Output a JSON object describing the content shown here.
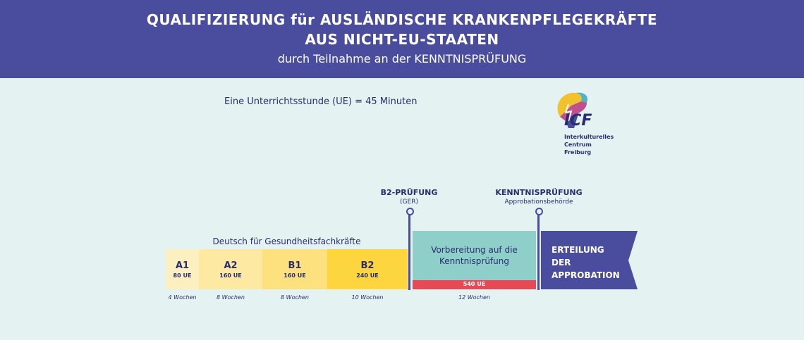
{
  "header": {
    "title_line1": "QUALIFIZIERUNG für AUSLÄNDISCHE KRANKENPFLEGEKRÄFTE",
    "title_line2": "AUS NICHT-EU-STAATEN",
    "subtitle": "durch Teilnahme an der KENNTNISPRÜFUNG"
  },
  "note": "Eine Unterrichtsstunde (UE) = 45 Minuten",
  "logo": {
    "mark": "ICF",
    "line1": "Interkulturelles",
    "line2": "Centrum",
    "line3": "Freiburg"
  },
  "milestones": {
    "b2_title": "B2-PRÜFUNG",
    "b2_sub": "(GER)",
    "kp_title": "KENNTNISPRÜFUNG",
    "kp_sub": "Approbationsbehörde"
  },
  "german_course": {
    "title": "Deutsch für Gesundheitsfachkräfte",
    "levels": [
      {
        "level": "A1",
        "ue": "80 UE",
        "weeks": "4 Wochen",
        "color": "#fdf0c0"
      },
      {
        "level": "A2",
        "ue": "160 UE",
        "weeks": "8 Wochen",
        "color": "#fde9a1"
      },
      {
        "level": "B1",
        "ue": "160 UE",
        "weeks": "8 Wochen",
        "color": "#fde17e"
      },
      {
        "level": "B2",
        "ue": "240 UE",
        "weeks": "10 Wochen",
        "color": "#fcd53f"
      }
    ]
  },
  "preparation": {
    "line1": "Vorbereitung auf die",
    "line2": "Kenntnisprüfung",
    "ue": "540 UE",
    "weeks": "12 Wochen",
    "color": "#8fcfca",
    "bar_color": "#e84a55"
  },
  "approbation": {
    "line1": "ERTEILUNG",
    "line2": "DER",
    "line3": "APPROBATION",
    "color": "#4a4c9e"
  }
}
